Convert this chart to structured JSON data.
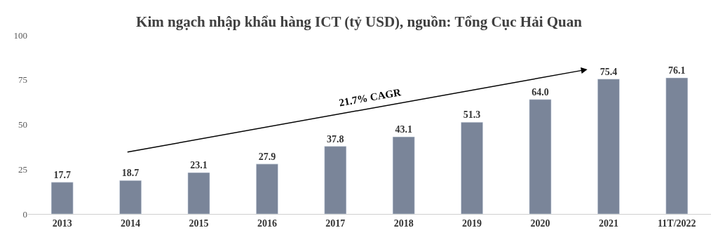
{
  "chart_data": {
    "type": "bar",
    "title": "Kim ngạch nhập khẩu hàng ICT (tỷ USD), nguồn: Tổng Cục Hải Quan",
    "categories": [
      "2013",
      "2014",
      "2015",
      "2016",
      "2017",
      "2018",
      "2019",
      "2020",
      "2021",
      "11T/2022"
    ],
    "values": [
      17.7,
      18.7,
      23.1,
      27.9,
      37.8,
      43.1,
      51.3,
      64.0,
      75.4,
      76.1
    ],
    "value_labels": [
      "17.7",
      "18.7",
      "23.1",
      "27.9",
      "37.8",
      "43.1",
      "51.3",
      "64.0",
      "75.4",
      "76.1"
    ],
    "color": "#7a8599",
    "ylim": [
      0,
      100
    ],
    "yticks": [
      0,
      25,
      50,
      75,
      100
    ],
    "annotations": [
      "21.7% CAGR"
    ]
  }
}
